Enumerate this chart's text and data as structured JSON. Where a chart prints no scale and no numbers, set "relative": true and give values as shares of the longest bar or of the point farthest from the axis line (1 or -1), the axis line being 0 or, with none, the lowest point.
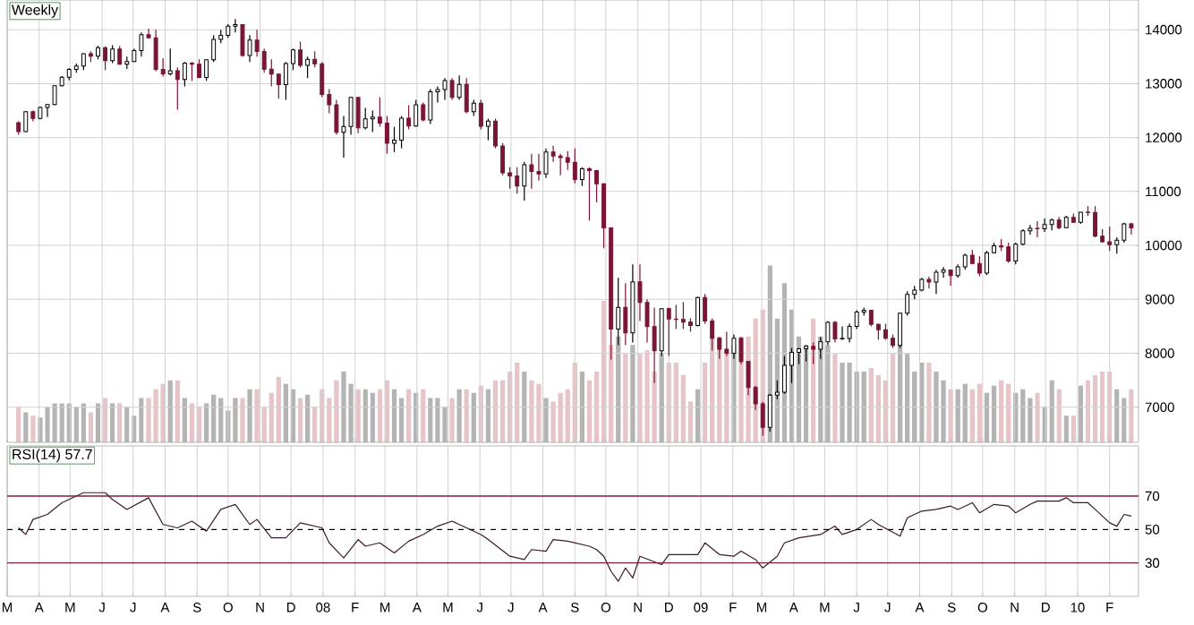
{
  "chart_data": [
    {
      "type": "candlestick",
      "title": "Weekly",
      "grid": true,
      "tick_labels": "y",
      "colors": [
        "#7a1535",
        "#ffffff",
        "#7a1535",
        "#ffffff",
        "#ffffff",
        "#ffffff",
        "#ffffff",
        "#ffffff",
        "#ffffff",
        "#ffffff",
        "#7a1535",
        "#ffffff",
        "#7a1535",
        "#ffffff",
        "#7a1535",
        "#ffffff",
        "#ffffff",
        "#ffffff",
        "#7a1535",
        "#7a1535",
        "#7a1535",
        "#ffffff",
        "#7a1535",
        "#ffffff",
        "#7a1535",
        "#7a1535",
        "#ffffff",
        "#ffffff",
        "#ffffff",
        "#ffffff",
        "#ffffff",
        "#7a1535",
        "#ffffff",
        "#7a1535",
        "#7a1535",
        "#7a1535",
        "#7a1535",
        "#ffffff",
        "#ffffff",
        "#7a1535",
        "#ffffff",
        "#7a1535",
        "#7a1535",
        "#7a1535",
        "#7a1535",
        "#ffffff",
        "#ffffff",
        "#7a1535",
        "#ffffff",
        "#ffffff",
        "#7a1535",
        "#7a1535",
        "#ffffff",
        "#ffffff",
        "#7a1535",
        "#ffffff",
        "#7a1535",
        "#ffffff",
        "#ffffff",
        "#ffffff",
        "#7a1535",
        "#ffffff",
        "#7a1535",
        "#ffffff",
        "#7a1535",
        "#ffffff",
        "#7a1535",
        "#7a1535",
        "#7a1535",
        "#7a1535",
        "#ffffff",
        "#7a1535",
        "#7a1535",
        "#ffffff",
        "#7a1535",
        "#7a1535",
        "#7a1535",
        "#7a1535",
        "#ffffff",
        "#7a1535",
        "#7a1535",
        "#7a1535",
        "#7a1535",
        "#ffffff",
        "#7a1535",
        "#ffffff",
        "#7a1535",
        "#7a1535",
        "#7a1535",
        "#ffffff",
        "#7a1535",
        "#7a1535",
        "#7a1535",
        "#7a1535",
        "#ffffff",
        "#7a1535",
        "#7a1535",
        "#7a1535",
        "#7a1535",
        "#ffffff",
        "#7a1535",
        "#7a1535",
        "#7a1535",
        "#7a1535",
        "#ffffff",
        "#ffffff",
        "#ffffff",
        "#ffffff",
        "#ffffff",
        "#ffffff",
        "#7a1535",
        "#ffffff",
        "#ffffff",
        "#7a1535",
        "#ffffff",
        "#ffffff",
        "#ffffff",
        "#ffffff",
        "#7a1535",
        "#7a1535",
        "#7a1535",
        "#7a1535",
        "#ffffff",
        "#ffffff",
        "#ffffff",
        "#ffffff",
        "#7a1535",
        "#ffffff",
        "#ffffff",
        "#7a1535",
        "#ffffff",
        "#ffffff",
        "#7a1535",
        "#7a1535",
        "#ffffff",
        "#ffffff",
        "#7a1535",
        "#7a1535",
        "#ffffff",
        "#ffffff",
        "#ffffff",
        "#7a1535",
        "#ffffff",
        "#ffffff",
        "#7a1535",
        "#ffffff",
        "#7a1535",
        "#ffffff",
        "#7a1535",
        "#7a1535",
        "#7a1535",
        "#7a1535",
        "#ffffff",
        "#ffffff",
        "#7a1535"
      ],
      "xlim": [
        "2007-03-01",
        "2010-03-01"
      ],
      "xticks": [
        "2007-03-01",
        "2007-04-01",
        "2007-05-01",
        "2007-06-01",
        "2007-07-01",
        "2007-08-01",
        "2007-09-01",
        "2007-10-01",
        "2007-11-01",
        "2007-12-01",
        "2008-01-01",
        "2008-02-01",
        "2008-03-01",
        "2008-04-01",
        "2008-05-01",
        "2008-06-01",
        "2008-07-01",
        "2008-08-01",
        "2008-09-01",
        "2008-10-01",
        "2008-11-01",
        "2008-12-01",
        "2009-01-01",
        "2009-02-01",
        "2009-03-01",
        "2009-04-01",
        "2009-05-01",
        "2009-06-01",
        "2009-07-01",
        "2009-08-01",
        "2009-09-01",
        "2009-10-01",
        "2009-11-01",
        "2009-12-01",
        "2010-01-01",
        "2010-02-01"
      ],
      "ylim": [
        6350,
        14550
      ],
      "yticks": [
        7000,
        8000,
        9000,
        10000,
        11000,
        12000,
        13000,
        14000
      ],
      "x": [
        "2007-03-12",
        "2007-03-19",
        "2007-03-26",
        "2007-04-02",
        "2007-04-09",
        "2007-04-16",
        "2007-04-23",
        "2007-04-30",
        "2007-05-07",
        "2007-05-14",
        "2007-05-21",
        "2007-05-28",
        "2007-06-04",
        "2007-06-11",
        "2007-06-18",
        "2007-06-25",
        "2007-07-02",
        "2007-07-09",
        "2007-07-16",
        "2007-07-23",
        "2007-07-30",
        "2007-08-06",
        "2007-08-13",
        "2007-08-20",
        "2007-08-27",
        "2007-09-03",
        "2007-09-10",
        "2007-09-17",
        "2007-09-24",
        "2007-10-01",
        "2007-10-08",
        "2007-10-15",
        "2007-10-22",
        "2007-10-29",
        "2007-11-05",
        "2007-11-12",
        "2007-11-19",
        "2007-11-26",
        "2007-12-03",
        "2007-12-10",
        "2007-12-17",
        "2007-12-24",
        "2007-12-31",
        "2008-01-07",
        "2008-01-14",
        "2008-01-21",
        "2008-01-28",
        "2008-02-04",
        "2008-02-11",
        "2008-02-18",
        "2008-02-25",
        "2008-03-03",
        "2008-03-10",
        "2008-03-17",
        "2008-03-24",
        "2008-03-31",
        "2008-04-07",
        "2008-04-14",
        "2008-04-21",
        "2008-04-28",
        "2008-05-05",
        "2008-05-12",
        "2008-05-19",
        "2008-05-26",
        "2008-06-02",
        "2008-06-09",
        "2008-06-16",
        "2008-06-23",
        "2008-06-30",
        "2008-07-07",
        "2008-07-14",
        "2008-07-21",
        "2008-07-28",
        "2008-08-04",
        "2008-08-11",
        "2008-08-18",
        "2008-08-25",
        "2008-09-01",
        "2008-09-08",
        "2008-09-15",
        "2008-09-22",
        "2008-09-29",
        "2008-10-06",
        "2008-10-13",
        "2008-10-20",
        "2008-10-27",
        "2008-11-03",
        "2008-11-10",
        "2008-11-17",
        "2008-11-24",
        "2008-12-01",
        "2008-12-08",
        "2008-12-15",
        "2008-12-22",
        "2008-12-29",
        "2009-01-05",
        "2009-01-12",
        "2009-01-19",
        "2009-01-26",
        "2009-02-02",
        "2009-02-09",
        "2009-02-16",
        "2009-02-23",
        "2009-03-02",
        "2009-03-09",
        "2009-03-16",
        "2009-03-23",
        "2009-03-30",
        "2009-04-06",
        "2009-04-13",
        "2009-04-20",
        "2009-04-27",
        "2009-05-04",
        "2009-05-11",
        "2009-05-18",
        "2009-05-25",
        "2009-06-01",
        "2009-06-08",
        "2009-06-15",
        "2009-06-22",
        "2009-06-29",
        "2009-07-06",
        "2009-07-13",
        "2009-07-20",
        "2009-07-27",
        "2009-08-03",
        "2009-08-10",
        "2009-08-17",
        "2009-08-24",
        "2009-08-31",
        "2009-09-07",
        "2009-09-14",
        "2009-09-21",
        "2009-09-28",
        "2009-10-05",
        "2009-10-12",
        "2009-10-19",
        "2009-10-26",
        "2009-11-02",
        "2009-11-09",
        "2009-11-16",
        "2009-11-23",
        "2009-11-30",
        "2009-12-07",
        "2009-12-14",
        "2009-12-21",
        "2009-12-28",
        "2010-01-04",
        "2010-01-11",
        "2010-01-18",
        "2010-01-25",
        "2010-02-01",
        "2010-02-08",
        "2010-02-15",
        "2010-02-22"
      ],
      "ohlc": [
        [
          12275,
          12300,
          12050,
          12110
        ],
        [
          12110,
          12490,
          12100,
          12481
        ],
        [
          12481,
          12500,
          12300,
          12354
        ],
        [
          12354,
          12573,
          12340,
          12560
        ],
        [
          12560,
          12620,
          12380,
          12612
        ],
        [
          12612,
          12970,
          12600,
          12961
        ],
        [
          12961,
          13140,
          12950,
          13120
        ],
        [
          13120,
          13290,
          13060,
          13264
        ],
        [
          13264,
          13370,
          13200,
          13326
        ],
        [
          13326,
          13560,
          13250,
          13556
        ],
        [
          13556,
          13600,
          13400,
          13507
        ],
        [
          13507,
          13700,
          13450,
          13668
        ],
        [
          13668,
          13690,
          13250,
          13424
        ],
        [
          13424,
          13710,
          13380,
          13640
        ],
        [
          13640,
          13700,
          13350,
          13360
        ],
        [
          13360,
          13500,
          13270,
          13409
        ],
        [
          13409,
          13650,
          13400,
          13611
        ],
        [
          13611,
          13950,
          13500,
          13907
        ],
        [
          13907,
          14021,
          13850,
          13851
        ],
        [
          13851,
          14000,
          13230,
          13265
        ],
        [
          13265,
          13470,
          13130,
          13182
        ],
        [
          13182,
          13650,
          13150,
          13240
        ],
        [
          13240,
          13300,
          12518,
          13079
        ],
        [
          13079,
          13400,
          12950,
          13378
        ],
        [
          13378,
          13400,
          13050,
          13358
        ],
        [
          13358,
          13450,
          13100,
          13113
        ],
        [
          13113,
          13450,
          13050,
          13442
        ],
        [
          13442,
          13900,
          13400,
          13820
        ],
        [
          13820,
          14000,
          13750,
          13896
        ],
        [
          13896,
          14100,
          13850,
          14066
        ],
        [
          14066,
          14198,
          13950,
          14093
        ],
        [
          14093,
          14100,
          13500,
          13522
        ],
        [
          13522,
          13900,
          13400,
          13806
        ],
        [
          13806,
          14000,
          13500,
          13595
        ],
        [
          13595,
          13650,
          13200,
          13266
        ],
        [
          13266,
          13450,
          12950,
          13176
        ],
        [
          13176,
          13180,
          12720,
          12980
        ],
        [
          12980,
          13400,
          12700,
          13372
        ],
        [
          13372,
          13650,
          13250,
          13625
        ],
        [
          13625,
          13780,
          13300,
          13339
        ],
        [
          13339,
          13500,
          13100,
          13450
        ],
        [
          13450,
          13600,
          13300,
          13366
        ],
        [
          13366,
          13400,
          12750,
          12800
        ],
        [
          12800,
          12900,
          12450,
          12606
        ],
        [
          12606,
          12700,
          12050,
          12099
        ],
        [
          12099,
          12400,
          11630,
          12207
        ],
        [
          12207,
          12750,
          12050,
          12743
        ],
        [
          12743,
          12750,
          12080,
          12182
        ],
        [
          12182,
          12550,
          12150,
          12348
        ],
        [
          12348,
          12500,
          12100,
          12381
        ],
        [
          12381,
          12750,
          12200,
          12266
        ],
        [
          12266,
          12400,
          11700,
          11894
        ],
        [
          11894,
          12200,
          11730,
          11951
        ],
        [
          11951,
          12400,
          11800,
          12361
        ],
        [
          12361,
          12600,
          12150,
          12216
        ],
        [
          12216,
          12700,
          12200,
          12609
        ],
        [
          12609,
          12650,
          12300,
          12325
        ],
        [
          12325,
          12900,
          12250,
          12849
        ],
        [
          12849,
          12950,
          12650,
          12891
        ],
        [
          12891,
          13100,
          12700,
          13058
        ],
        [
          13058,
          13100,
          12700,
          12745
        ],
        [
          12745,
          13150,
          12700,
          12987
        ],
        [
          12987,
          13100,
          12450,
          12480
        ],
        [
          12480,
          12700,
          12400,
          12638
        ],
        [
          12638,
          12700,
          12150,
          12209
        ],
        [
          12209,
          12350,
          11950,
          12307
        ],
        [
          12307,
          12350,
          11800,
          11843
        ],
        [
          11843,
          11900,
          11300,
          11346
        ],
        [
          11346,
          11450,
          11050,
          11288
        ],
        [
          11288,
          11450,
          10960,
          11100
        ],
        [
          11100,
          11550,
          10830,
          11496
        ],
        [
          11496,
          11700,
          11050,
          11370
        ],
        [
          11370,
          11700,
          11200,
          11326
        ],
        [
          11326,
          11800,
          11250,
          11734
        ],
        [
          11734,
          11850,
          11550,
          11659
        ],
        [
          11659,
          11700,
          11300,
          11628
        ],
        [
          11628,
          11750,
          11400,
          11543
        ],
        [
          11543,
          11800,
          11150,
          11220
        ],
        [
          11220,
          11450,
          11100,
          11421
        ],
        [
          11421,
          11450,
          10460,
          11388
        ],
        [
          11388,
          11400,
          10800,
          11143
        ],
        [
          11143,
          11150,
          9950,
          10325
        ],
        [
          10325,
          10330,
          7880,
          8451
        ],
        [
          8451,
          9400,
          8150,
          8852
        ],
        [
          8852,
          9300,
          8150,
          8378
        ],
        [
          8378,
          9650,
          8200,
          9325
        ],
        [
          9325,
          9650,
          8600,
          8943
        ],
        [
          8943,
          9000,
          8200,
          8497
        ],
        [
          8497,
          8850,
          7450,
          8046
        ],
        [
          8046,
          8830,
          7950,
          8829
        ],
        [
          8829,
          8850,
          7950,
          8635
        ],
        [
          8635,
          8900,
          8450,
          8629
        ],
        [
          8629,
          8950,
          8450,
          8579
        ],
        [
          8579,
          8650,
          8400,
          8515
        ],
        [
          8515,
          9050,
          8500,
          9034
        ],
        [
          9034,
          9100,
          8550,
          8599
        ],
        [
          8599,
          8650,
          8050,
          8281
        ],
        [
          8281,
          8300,
          7900,
          8077
        ],
        [
          8077,
          8400,
          7950,
          8000
        ],
        [
          8000,
          8350,
          7900,
          8280
        ],
        [
          8280,
          8300,
          7800,
          7850
        ],
        [
          7850,
          7860,
          7220,
          7366
        ],
        [
          7366,
          7400,
          6950,
          7063
        ],
        [
          7063,
          7100,
          6470,
          6627
        ],
        [
          6627,
          7250,
          6550,
          7224
        ],
        [
          7224,
          7500,
          7150,
          7279
        ],
        [
          7279,
          7950,
          7250,
          7776
        ],
        [
          7776,
          8100,
          7450,
          8018
        ],
        [
          8018,
          8100,
          7800,
          8083
        ],
        [
          8083,
          8150,
          7850,
          8131
        ],
        [
          8131,
          8200,
          7800,
          8076
        ],
        [
          8076,
          8300,
          7900,
          8212
        ],
        [
          8212,
          8600,
          8150,
          8575
        ],
        [
          8575,
          8600,
          8200,
          8268
        ],
        [
          8268,
          8500,
          8250,
          8277
        ],
        [
          8277,
          8550,
          8200,
          8500
        ],
        [
          8500,
          8800,
          8450,
          8764
        ],
        [
          8764,
          8850,
          8700,
          8799
        ],
        [
          8799,
          8800,
          8500,
          8539
        ],
        [
          8539,
          8550,
          8250,
          8438
        ],
        [
          8438,
          8550,
          8250,
          8280
        ],
        [
          8280,
          8350,
          8100,
          8146
        ],
        [
          8146,
          8750,
          8100,
          8743
        ],
        [
          8743,
          9150,
          8700,
          9093
        ],
        [
          9093,
          9250,
          9000,
          9171
        ],
        [
          9171,
          9400,
          9150,
          9370
        ],
        [
          9370,
          9420,
          9200,
          9321
        ],
        [
          9321,
          9550,
          9100,
          9505
        ],
        [
          9505,
          9600,
          9400,
          9544
        ],
        [
          9544,
          9550,
          9250,
          9441
        ],
        [
          9441,
          9650,
          9400,
          9605
        ],
        [
          9605,
          9850,
          9550,
          9820
        ],
        [
          9820,
          9920,
          9650,
          9665
        ],
        [
          9665,
          9800,
          9430,
          9488
        ],
        [
          9488,
          9900,
          9450,
          9865
        ],
        [
          9865,
          10050,
          9850,
          9995
        ],
        [
          9995,
          10120,
          9900,
          9972
        ],
        [
          9972,
          10050,
          9680,
          9713
        ],
        [
          9713,
          10050,
          9650,
          10023
        ],
        [
          10023,
          10300,
          10000,
          10270
        ],
        [
          10270,
          10380,
          10200,
          10318
        ],
        [
          10318,
          10450,
          10150,
          10310
        ],
        [
          10310,
          10500,
          10250,
          10388
        ],
        [
          10388,
          10500,
          10280,
          10471
        ],
        [
          10471,
          10530,
          10300,
          10329
        ],
        [
          10329,
          10550,
          10320,
          10520
        ],
        [
          10520,
          10590,
          10420,
          10428
        ],
        [
          10428,
          10620,
          10400,
          10618
        ],
        [
          10618,
          10730,
          10550,
          10610
        ],
        [
          10610,
          10730,
          10150,
          10173
        ],
        [
          10173,
          10300,
          10050,
          10067
        ],
        [
          10067,
          10350,
          9900,
          10013
        ],
        [
          10013,
          10150,
          9850,
          10099
        ],
        [
          10099,
          10420,
          10050,
          10402
        ],
        [
          10402,
          10420,
          10200,
          10325
        ]
      ]
    },
    {
      "type": "bar",
      "relative": true,
      "tick_labels": false,
      "xlim": [
        "2007-03-01",
        "2010-03-01"
      ],
      "x": [
        "2007-03-12",
        "2007-03-19",
        "2007-03-26",
        "2007-04-02",
        "2007-04-09",
        "2007-04-16",
        "2007-04-23",
        "2007-04-30",
        "2007-05-07",
        "2007-05-14",
        "2007-05-21",
        "2007-05-28",
        "2007-06-04",
        "2007-06-11",
        "2007-06-18",
        "2007-06-25",
        "2007-07-02",
        "2007-07-09",
        "2007-07-16",
        "2007-07-23",
        "2007-07-30",
        "2007-08-06",
        "2007-08-13",
        "2007-08-20",
        "2007-08-27",
        "2007-09-03",
        "2007-09-10",
        "2007-09-17",
        "2007-09-24",
        "2007-10-01",
        "2007-10-08",
        "2007-10-15",
        "2007-10-22",
        "2007-10-29",
        "2007-11-05",
        "2007-11-12",
        "2007-11-19",
        "2007-11-26",
        "2007-12-03",
        "2007-12-10",
        "2007-12-17",
        "2007-12-24",
        "2007-12-31",
        "2008-01-07",
        "2008-01-14",
        "2008-01-21",
        "2008-01-28",
        "2008-02-04",
        "2008-02-11",
        "2008-02-18",
        "2008-02-25",
        "2008-03-03",
        "2008-03-10",
        "2008-03-17",
        "2008-03-24",
        "2008-03-31",
        "2008-04-07",
        "2008-04-14",
        "2008-04-21",
        "2008-04-28",
        "2008-05-05",
        "2008-05-12",
        "2008-05-19",
        "2008-05-26",
        "2008-06-02",
        "2008-06-09",
        "2008-06-16",
        "2008-06-23",
        "2008-06-30",
        "2008-07-07",
        "2008-07-14",
        "2008-07-21",
        "2008-07-28",
        "2008-08-04",
        "2008-08-11",
        "2008-08-18",
        "2008-08-25",
        "2008-09-01",
        "2008-09-08",
        "2008-09-15",
        "2008-09-22",
        "2008-09-29",
        "2008-10-06",
        "2008-10-13",
        "2008-10-20",
        "2008-10-27",
        "2008-11-03",
        "2008-11-10",
        "2008-11-17",
        "2008-11-24",
        "2008-12-01",
        "2008-12-08",
        "2008-12-15",
        "2008-12-22",
        "2008-12-29",
        "2009-01-05",
        "2009-01-12",
        "2009-01-19",
        "2009-01-26",
        "2009-02-02",
        "2009-02-09",
        "2009-02-16",
        "2009-02-23",
        "2009-03-02",
        "2009-03-09",
        "2009-03-16",
        "2009-03-23",
        "2009-03-30",
        "2009-04-06",
        "2009-04-13",
        "2009-04-20",
        "2009-04-27",
        "2009-05-04",
        "2009-05-11",
        "2009-05-18",
        "2009-05-25",
        "2009-06-01",
        "2009-06-08",
        "2009-06-15",
        "2009-06-22",
        "2009-06-29",
        "2009-07-06",
        "2009-07-13",
        "2009-07-20",
        "2009-07-27",
        "2009-08-03",
        "2009-08-10",
        "2009-08-17",
        "2009-08-24",
        "2009-08-31",
        "2009-09-07",
        "2009-09-14",
        "2009-09-21",
        "2009-09-28",
        "2009-10-05",
        "2009-10-12",
        "2009-10-19",
        "2009-10-26",
        "2009-11-02",
        "2009-11-09",
        "2009-11-16",
        "2009-11-23",
        "2009-11-30",
        "2009-12-07",
        "2009-12-14",
        "2009-12-21",
        "2009-12-28",
        "2010-01-04",
        "2010-01-11",
        "2010-01-18",
        "2010-01-25",
        "2010-02-01",
        "2010-02-08",
        "2010-02-15",
        "2010-02-22"
      ],
      "values": [
        0.2,
        0.17,
        0.15,
        0.14,
        0.2,
        0.22,
        0.22,
        0.22,
        0.2,
        0.22,
        0.17,
        0.22,
        0.25,
        0.22,
        0.22,
        0.2,
        0.15,
        0.25,
        0.25,
        0.3,
        0.33,
        0.35,
        0.35,
        0.25,
        0.22,
        0.2,
        0.22,
        0.27,
        0.25,
        0.18,
        0.25,
        0.25,
        0.3,
        0.3,
        0.2,
        0.28,
        0.37,
        0.33,
        0.3,
        0.25,
        0.27,
        0.2,
        0.3,
        0.25,
        0.35,
        0.4,
        0.33,
        0.3,
        0.3,
        0.28,
        0.3,
        0.35,
        0.3,
        0.25,
        0.3,
        0.28,
        0.3,
        0.25,
        0.25,
        0.2,
        0.25,
        0.3,
        0.3,
        0.28,
        0.32,
        0.3,
        0.35,
        0.35,
        0.4,
        0.45,
        0.4,
        0.35,
        0.33,
        0.25,
        0.23,
        0.28,
        0.3,
        0.45,
        0.4,
        0.35,
        0.4,
        0.8,
        0.55,
        0.6,
        0.5,
        0.55,
        0.5,
        0.52,
        0.4,
        0.5,
        0.45,
        0.45,
        0.38,
        0.23,
        0.3,
        0.45,
        0.6,
        0.6,
        0.5,
        0.55,
        0.6,
        0.6,
        0.7,
        0.75,
        1.0,
        0.7,
        0.9,
        0.75,
        0.6,
        0.55,
        0.7,
        0.6,
        0.55,
        0.5,
        0.45,
        0.45,
        0.4,
        0.4,
        0.42,
        0.38,
        0.35,
        0.5,
        0.55,
        0.5,
        0.4,
        0.45,
        0.45,
        0.4,
        0.35,
        0.3,
        0.3,
        0.33,
        0.3,
        0.33,
        0.28,
        0.32,
        0.35,
        0.33,
        0.28,
        0.3,
        0.25,
        0.28,
        0.2,
        0.35,
        0.3,
        0.15,
        0.15,
        0.32,
        0.35,
        0.38,
        0.4,
        0.4,
        0.3,
        0.25,
        0.3
      ],
      "colors": [
        "#e6c4c8",
        "#b4b4b4",
        "#e6c4c8",
        "#b4b4b4",
        "#b4b4b4",
        "#b4b4b4",
        "#b4b4b4",
        "#b4b4b4",
        "#b4b4b4",
        "#b4b4b4",
        "#e6c4c8",
        "#b4b4b4",
        "#e6c4c8",
        "#b4b4b4",
        "#e6c4c8",
        "#b4b4b4",
        "#b4b4b4",
        "#b4b4b4",
        "#e6c4c8",
        "#e6c4c8",
        "#e6c4c8",
        "#b4b4b4",
        "#e6c4c8",
        "#b4b4b4",
        "#e6c4c8",
        "#e6c4c8",
        "#b4b4b4",
        "#b4b4b4",
        "#b4b4b4",
        "#b4b4b4",
        "#b4b4b4",
        "#e6c4c8",
        "#b4b4b4",
        "#e6c4c8",
        "#e6c4c8",
        "#e6c4c8",
        "#e6c4c8",
        "#b4b4b4",
        "#b4b4b4",
        "#e6c4c8",
        "#b4b4b4",
        "#e6c4c8",
        "#e6c4c8",
        "#e6c4c8",
        "#e6c4c8",
        "#b4b4b4",
        "#b4b4b4",
        "#e6c4c8",
        "#b4b4b4",
        "#b4b4b4",
        "#e6c4c8",
        "#e6c4c8",
        "#b4b4b4",
        "#b4b4b4",
        "#e6c4c8",
        "#b4b4b4",
        "#e6c4c8",
        "#b4b4b4",
        "#b4b4b4",
        "#b4b4b4",
        "#e6c4c8",
        "#b4b4b4",
        "#e6c4c8",
        "#b4b4b4",
        "#e6c4c8",
        "#b4b4b4",
        "#e6c4c8",
        "#e6c4c8",
        "#e6c4c8",
        "#e6c4c8",
        "#b4b4b4",
        "#e6c4c8",
        "#e6c4c8",
        "#b4b4b4",
        "#e6c4c8",
        "#e6c4c8",
        "#e6c4c8",
        "#e6c4c8",
        "#b4b4b4",
        "#e6c4c8",
        "#e6c4c8",
        "#e6c4c8",
        "#e6c4c8",
        "#b4b4b4",
        "#e6c4c8",
        "#b4b4b4",
        "#e6c4c8",
        "#e6c4c8",
        "#e6c4c8",
        "#b4b4b4",
        "#e6c4c8",
        "#e6c4c8",
        "#e6c4c8",
        "#e6c4c8",
        "#b4b4b4",
        "#e6c4c8",
        "#e6c4c8",
        "#e6c4c8",
        "#e6c4c8",
        "#b4b4b4",
        "#e6c4c8",
        "#e6c4c8",
        "#e6c4c8",
        "#e6c4c8",
        "#b4b4b4",
        "#b4b4b4",
        "#b4b4b4",
        "#b4b4b4",
        "#b4b4b4",
        "#b4b4b4",
        "#e6c4c8",
        "#b4b4b4",
        "#b4b4b4",
        "#e6c4c8",
        "#b4b4b4",
        "#b4b4b4",
        "#b4b4b4",
        "#b4b4b4",
        "#e6c4c8",
        "#e6c4c8",
        "#e6c4c8",
        "#e6c4c8",
        "#b4b4b4",
        "#b4b4b4",
        "#b4b4b4",
        "#b4b4b4",
        "#e6c4c8",
        "#b4b4b4",
        "#b4b4b4",
        "#e6c4c8",
        "#b4b4b4",
        "#b4b4b4",
        "#e6c4c8",
        "#e6c4c8",
        "#b4b4b4",
        "#b4b4b4",
        "#e6c4c8",
        "#e6c4c8",
        "#b4b4b4",
        "#b4b4b4",
        "#b4b4b4",
        "#e6c4c8",
        "#b4b4b4",
        "#b4b4b4",
        "#e6c4c8",
        "#b4b4b4",
        "#e6c4c8",
        "#b4b4b4",
        "#e6c4c8",
        "#e6c4c8",
        "#e6c4c8",
        "#e6c4c8",
        "#b4b4b4",
        "#b4b4b4",
        "#e6c4c8"
      ]
    },
    {
      "type": "line",
      "title": "RSI(14) 57.7",
      "color": "#3c1830",
      "grid": "x",
      "xlim": [
        "2007-03-01",
        "2010-03-01"
      ],
      "xticks": [
        {
          "value": "2007-03-01",
          "label": "M"
        },
        {
          "value": "2007-04-01",
          "label": "A"
        },
        {
          "value": "2007-05-01",
          "label": "M"
        },
        {
          "value": "2007-06-01",
          "label": "J"
        },
        {
          "value": "2007-07-01",
          "label": "J"
        },
        {
          "value": "2007-08-01",
          "label": "A"
        },
        {
          "value": "2007-09-01",
          "label": "S"
        },
        {
          "value": "2007-10-01",
          "label": "O"
        },
        {
          "value": "2007-11-01",
          "label": "N"
        },
        {
          "value": "2007-12-01",
          "label": "D"
        },
        {
          "value": "2008-01-01",
          "label": "08"
        },
        {
          "value": "2008-02-01",
          "label": "F"
        },
        {
          "value": "2008-03-01",
          "label": "M"
        },
        {
          "value": "2008-04-01",
          "label": "A"
        },
        {
          "value": "2008-05-01",
          "label": "M"
        },
        {
          "value": "2008-06-01",
          "label": "J"
        },
        {
          "value": "2008-07-01",
          "label": "J"
        },
        {
          "value": "2008-08-01",
          "label": "A"
        },
        {
          "value": "2008-09-01",
          "label": "S"
        },
        {
          "value": "2008-10-01",
          "label": "O"
        },
        {
          "value": "2008-11-01",
          "label": "N"
        },
        {
          "value": "2008-12-01",
          "label": "D"
        },
        {
          "value": "2009-01-01",
          "label": "09"
        },
        {
          "value": "2009-02-01",
          "label": "F"
        },
        {
          "value": "2009-03-01",
          "label": "M"
        },
        {
          "value": "2009-04-01",
          "label": "A"
        },
        {
          "value": "2009-05-01",
          "label": "M"
        },
        {
          "value": "2009-06-01",
          "label": "J"
        },
        {
          "value": "2009-07-01",
          "label": "J"
        },
        {
          "value": "2009-08-01",
          "label": "A"
        },
        {
          "value": "2009-09-01",
          "label": "S"
        },
        {
          "value": "2009-10-01",
          "label": "O"
        },
        {
          "value": "2009-11-01",
          "label": "N"
        },
        {
          "value": "2009-12-01",
          "label": "D"
        },
        {
          "value": "2010-01-01",
          "label": "10"
        },
        {
          "value": "2010-02-01",
          "label": "F"
        }
      ],
      "ylim": [
        10,
        100
      ],
      "yticks": [
        30,
        50,
        70
      ],
      "ref_lines": [
        {
          "axis": "y",
          "value": 70,
          "color": "#7a1f3d",
          "line_style": "solid"
        },
        {
          "axis": "y",
          "value": 50,
          "color": "#000000",
          "line_style": "dashed"
        },
        {
          "axis": "y",
          "value": 30,
          "color": "#7a1f3d",
          "line_style": "solid"
        }
      ],
      "x": [
        "2007-03-12",
        "2007-03-19",
        "2007-03-26",
        "2007-04-09",
        "2007-04-23",
        "2007-05-14",
        "2007-06-04",
        "2007-06-11",
        "2007-06-25",
        "2007-07-16",
        "2007-07-30",
        "2007-08-13",
        "2007-08-27",
        "2007-09-10",
        "2007-09-24",
        "2007-10-08",
        "2007-10-22",
        "2007-10-29",
        "2007-11-12",
        "2007-11-26",
        "2007-12-10",
        "2007-12-31",
        "2008-01-07",
        "2008-01-21",
        "2008-02-04",
        "2008-02-11",
        "2008-02-25",
        "2008-03-10",
        "2008-03-24",
        "2008-04-07",
        "2008-04-21",
        "2008-05-05",
        "2008-05-19",
        "2008-06-02",
        "2008-06-09",
        "2008-06-30",
        "2008-07-14",
        "2008-07-21",
        "2008-08-04",
        "2008-08-11",
        "2008-08-25",
        "2008-09-15",
        "2008-09-22",
        "2008-09-29",
        "2008-10-06",
        "2008-10-13",
        "2008-10-20",
        "2008-10-27",
        "2008-11-03",
        "2008-11-24",
        "2008-12-01",
        "2008-12-29",
        "2009-01-05",
        "2009-01-19",
        "2009-02-02",
        "2009-02-09",
        "2009-02-23",
        "2009-03-02",
        "2009-03-16",
        "2009-03-23",
        "2009-04-06",
        "2009-04-27",
        "2009-05-11",
        "2009-05-18",
        "2009-06-01",
        "2009-06-15",
        "2009-06-22",
        "2009-07-13",
        "2009-07-20",
        "2009-08-03",
        "2009-08-17",
        "2009-08-31",
        "2009-09-07",
        "2009-09-21",
        "2009-09-28",
        "2009-10-12",
        "2009-10-26",
        "2009-11-02",
        "2009-11-16",
        "2009-11-23",
        "2009-12-14",
        "2009-12-21",
        "2009-12-28",
        "2010-01-11",
        "2010-01-18",
        "2010-02-01",
        "2010-02-08",
        "2010-02-15",
        "2010-02-22"
      ],
      "values": [
        51,
        47,
        56,
        59,
        66,
        72,
        72,
        68,
        62,
        69,
        53,
        51,
        55,
        49,
        62,
        65,
        53,
        56,
        45,
        45,
        54,
        51,
        42,
        33,
        44,
        40,
        42,
        36,
        43,
        47,
        52,
        55,
        51,
        47,
        44,
        34,
        32,
        38,
        37,
        44,
        43,
        40,
        38,
        34,
        25,
        19,
        27,
        21,
        34,
        29,
        35,
        35,
        42,
        35,
        34,
        37,
        32,
        27,
        34,
        42,
        45,
        47,
        52,
        47,
        50,
        56,
        53,
        46,
        57,
        61,
        62,
        64,
        62,
        66,
        60,
        65,
        64,
        60,
        65,
        67,
        67,
        69,
        66,
        66,
        62,
        54,
        52,
        59,
        58
      ]
    }
  ]
}
